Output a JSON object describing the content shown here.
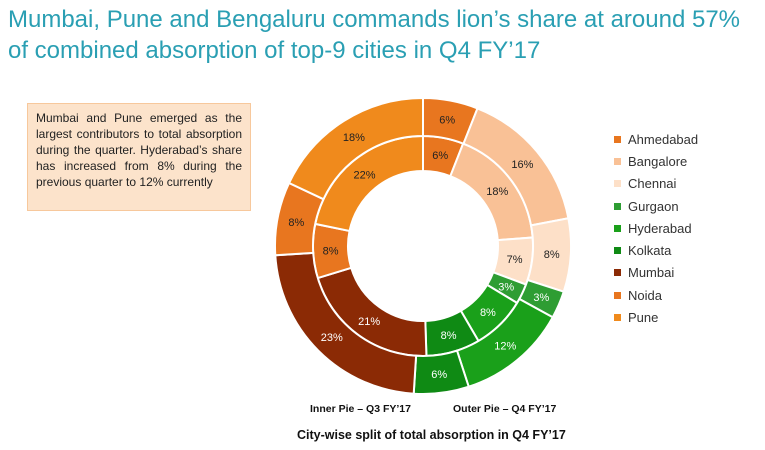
{
  "title": "Mumbai, Pune and Bengaluru commands lion’s share at around 57% of combined absorption of top-9 cities in Q4 FY’17",
  "callout_text": "Mumbai and Pune emerged as the largest contributors to total absorption during the quarter. Hyderabad’s share has increased from 8% during the previous quarter to 12% currently",
  "inner_caption": "Inner Pie – Q3 FY’17",
  "outer_caption": "Outer Pie – Q4 FY’17",
  "subtitle": "City-wise split of total absorption in Q4 FY’17",
  "chart_data": {
    "type": "pie",
    "style": "nested-donut",
    "categories": [
      "Ahmedabad",
      "Bangalore",
      "Chennai",
      "Gurgaon",
      "Hyderabad",
      "Kolkata",
      "Mumbai",
      "Noida",
      "Pune"
    ],
    "colors": [
      "#e8761f",
      "#f9c196",
      "#fde0c8",
      "#2e9d33",
      "#1aa01a",
      "#0f8a14",
      "#8b2a05",
      "#e8761f",
      "#f08a1c"
    ],
    "series": [
      {
        "name": "Inner Pie – Q3 FY’17",
        "values": [
          6,
          18,
          7,
          3,
          8,
          8,
          21,
          8,
          22
        ],
        "labels": [
          "6%",
          "18%",
          "7%",
          "3%",
          "8%",
          "8%",
          "21%",
          "8%",
          "22%"
        ]
      },
      {
        "name": "Outer Pie – Q4 FY’17",
        "values": [
          6,
          16,
          8,
          3,
          12,
          6,
          23,
          8,
          18
        ],
        "labels": [
          "6%",
          "16%",
          "8%",
          "3%",
          "12%",
          "6%",
          "23%",
          "8%",
          "18%"
        ]
      }
    ],
    "legend_position": "right"
  }
}
